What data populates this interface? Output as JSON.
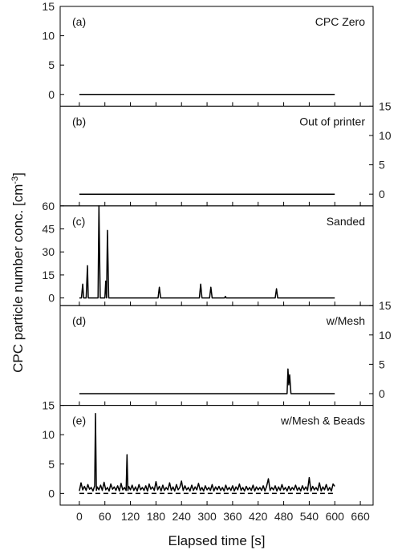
{
  "chart_data": {
    "type": "line",
    "xlabel": "Elapsed time [s]",
    "ylabel_main": "CPC particle number conc. [cm",
    "ylabel_sup": "-3",
    "ylabel_close": "]",
    "xlim": [
      -45,
      690
    ],
    "xticks": [
      0,
      60,
      120,
      180,
      240,
      300,
      360,
      420,
      480,
      540,
      600,
      660
    ],
    "xtick_labels": [
      "0",
      "60",
      "120",
      "180",
      "240",
      "300",
      "360",
      "420",
      "480",
      "540",
      "600",
      "660"
    ],
    "panels": [
      {
        "label": "(a)",
        "title": "CPC Zero",
        "yaxis_side": "left",
        "ylim": [
          -2,
          15
        ],
        "yticks": [
          0,
          5,
          10,
          15
        ],
        "ytick_labels": [
          "0",
          "5",
          "10",
          "15"
        ],
        "series": [
          {
            "style": "solid",
            "x": [
              0,
              600
            ],
            "y": [
              0,
              0
            ]
          }
        ]
      },
      {
        "label": "(b)",
        "title": "Out of printer",
        "yaxis_side": "right",
        "ylim": [
          -2,
          15
        ],
        "yticks": [
          0,
          5,
          10,
          15
        ],
        "ytick_labels": [
          "0",
          "5",
          "10",
          "15"
        ],
        "series": [
          {
            "style": "solid",
            "x": [
              0,
              600
            ],
            "y": [
              0,
              0
            ]
          }
        ]
      },
      {
        "label": "(c)",
        "title": "Sanded",
        "yaxis_side": "left",
        "ylim": [
          -5,
          60
        ],
        "yticks": [
          0,
          15,
          30,
          45,
          60
        ],
        "ytick_labels": [
          "0",
          "15",
          "30",
          "45",
          "60"
        ],
        "series": [
          {
            "style": "solid",
            "x": [
              0,
              5,
              8,
              10,
              13,
              16,
              19,
              21,
              24,
              27,
              30,
              40,
              44,
              46,
              49,
              52,
              56,
              60,
              62,
              64,
              66,
              69,
              72,
              75,
              185,
              188,
              191,
              194,
              282,
              285,
              288,
              291,
              306,
              309,
              312,
              315,
              341,
              343,
              345,
              460,
              463,
              466,
              469,
              600
            ],
            "y": [
              0,
              0,
              9,
              0,
              0,
              0,
              21,
              0,
              0,
              0,
              0,
              0,
              0,
              60,
              0,
              0,
              0,
              0,
              11,
              0,
              44,
              0,
              0,
              0,
              0,
              7,
              0,
              0,
              0,
              9,
              0,
              0,
              0,
              7,
              0,
              0,
              0,
              1,
              0,
              0,
              6,
              0,
              0,
              0
            ]
          }
        ]
      },
      {
        "label": "(d)",
        "title": "w/Mesh",
        "yaxis_side": "right",
        "ylim": [
          -2,
          15
        ],
        "yticks": [
          0,
          5,
          10,
          15
        ],
        "ytick_labels": [
          "0",
          "5",
          "10",
          "15"
        ],
        "series": [
          {
            "style": "solid",
            "x": [
              0,
              485,
              488,
              490,
              492,
              494,
              497,
              600
            ],
            "y": [
              0,
              0,
              0,
              4.2,
              1.5,
              3.2,
              0,
              0
            ]
          }
        ]
      },
      {
        "label": "(e)",
        "title": "w/Mesh & Beads",
        "yaxis_side": "left",
        "ylim": [
          -2,
          15
        ],
        "yticks": [
          0,
          5,
          10,
          15
        ],
        "ytick_labels": [
          "0",
          "5",
          "10",
          "15"
        ],
        "series": [
          {
            "style": "solid",
            "x": [
              0,
              4,
              8,
              12,
              16,
              20,
              24,
              28,
              32,
              36,
              38,
              40,
              42,
              46,
              50,
              54,
              58,
              62,
              66,
              70,
              74,
              78,
              82,
              86,
              90,
              94,
              98,
              102,
              106,
              110,
              112,
              114,
              116,
              120,
              124,
              128,
              132,
              136,
              140,
              144,
              148,
              152,
              156,
              160,
              164,
              168,
              172,
              176,
              180,
              184,
              188,
              192,
              196,
              200,
              204,
              208,
              212,
              216,
              220,
              224,
              228,
              232,
              236,
              240,
              244,
              248,
              252,
              256,
              260,
              264,
              268,
              272,
              276,
              280,
              284,
              288,
              292,
              296,
              300,
              304,
              308,
              312,
              316,
              320,
              324,
              328,
              332,
              336,
              340,
              344,
              348,
              352,
              356,
              360,
              364,
              368,
              372,
              376,
              380,
              384,
              388,
              392,
              396,
              400,
              404,
              408,
              412,
              416,
              420,
              424,
              428,
              432,
              436,
              440,
              444,
              448,
              452,
              456,
              460,
              464,
              468,
              472,
              476,
              480,
              484,
              488,
              492,
              496,
              500,
              504,
              508,
              512,
              516,
              520,
              524,
              528,
              532,
              536,
              540,
              544,
              548,
              552,
              556,
              560,
              564,
              568,
              572,
              576,
              580,
              584,
              588,
              592,
              596,
              600
            ],
            "y": [
              0.4,
              1.8,
              0.6,
              1.2,
              0.5,
              1.5,
              0.7,
              1.0,
              0.4,
              1.3,
              13.6,
              0.5,
              1.1,
              0.6,
              1.4,
              0.5,
              1.9,
              0.6,
              1.0,
              0.4,
              1.6,
              0.7,
              1.1,
              0.5,
              1.3,
              0.4,
              1.7,
              0.6,
              1.0,
              0.5,
              6.6,
              0.5,
              1.2,
              0.6,
              1.4,
              0.5,
              1.1,
              0.4,
              1.5,
              0.6,
              1.0,
              0.5,
              1.3,
              0.4,
              1.6,
              0.7,
              1.1,
              0.5,
              2.0,
              0.6,
              1.2,
              0.4,
              1.4,
              0.5,
              1.0,
              0.6,
              1.8,
              0.5,
              1.1,
              0.4,
              1.5,
              0.6,
              1.0,
              2.1,
              0.5,
              1.3,
              0.6,
              1.0,
              0.4,
              1.4,
              0.5,
              1.1,
              0.6,
              1.7,
              0.5,
              1.0,
              0.4,
              1.3,
              0.6,
              1.0,
              0.5,
              1.5,
              0.4,
              1.1,
              0.6,
              1.2,
              0.5,
              1.0,
              0.4,
              1.4,
              0.6,
              1.0,
              0.5,
              1.3,
              0.4,
              1.1,
              0.6,
              1.6,
              0.5,
              1.0,
              0.4,
              1.2,
              0.6,
              1.0,
              0.5,
              1.4,
              0.4,
              1.1,
              0.6,
              1.0,
              0.5,
              1.3,
              0.4,
              1.2,
              2.5,
              0.5,
              1.0,
              0.6,
              1.3,
              0.4,
              1.1,
              0.5,
              1.5,
              0.6,
              1.0,
              0.4,
              1.2,
              0.5,
              1.0,
              0.6,
              1.4,
              0.5,
              1.0,
              0.4,
              1.3,
              0.6,
              1.1,
              0.5,
              2.7,
              0.4,
              1.2,
              0.6,
              1.0,
              0.5,
              1.8,
              0.4,
              1.1,
              0.6,
              1.5,
              0.5,
              1.0,
              0.4,
              1.6,
              1.2
            ]
          },
          {
            "style": "dashed",
            "x": [
              0,
              600
            ],
            "y": [
              0,
              0
            ]
          }
        ]
      }
    ]
  }
}
